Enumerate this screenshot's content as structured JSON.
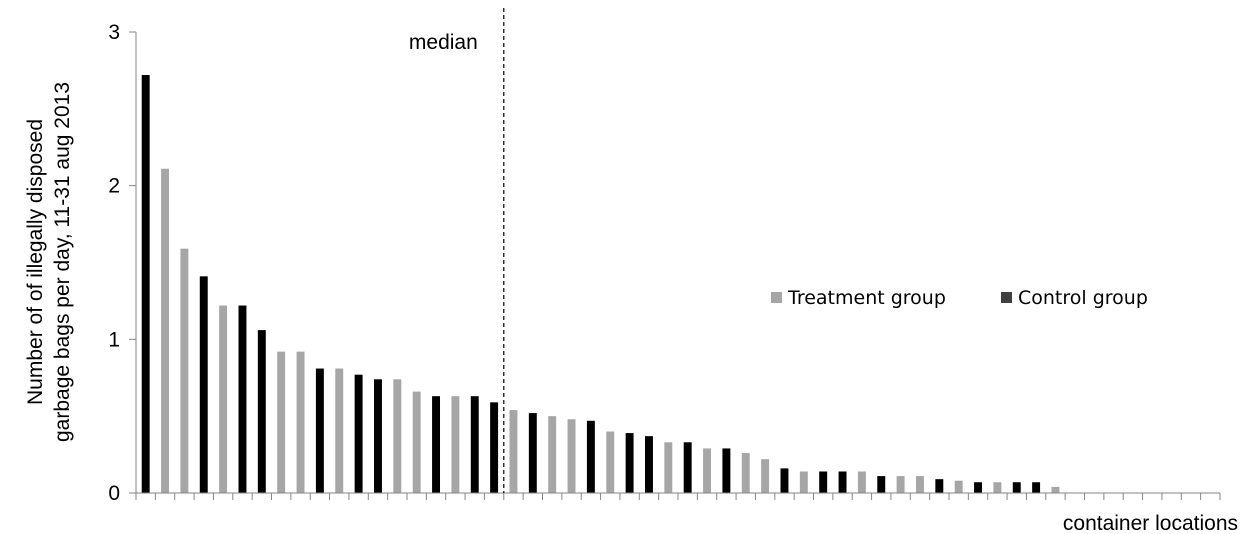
{
  "chart_data": {
    "type": "bar",
    "xlabel": "container locations",
    "ylabel_lines": [
      "Number of of illegally disposed",
      "garbage bags per day, 11-31 aug 2013"
    ],
    "ylim": [
      0,
      3
    ],
    "yticks": [
      "0",
      "1",
      "2",
      "3"
    ],
    "grid": false,
    "legend_position": "right-middle",
    "legend": [
      {
        "name": "Treatment group",
        "color": "#a6a6a6"
      },
      {
        "name": "Control group",
        "color": "#000000"
      }
    ],
    "annotation": {
      "label": "median",
      "style": "dashed vertical line",
      "position_between_bars": [
        18,
        19
      ]
    },
    "bars": [
      {
        "value": 2.72,
        "group": "Control group"
      },
      {
        "value": 2.11,
        "group": "Treatment group"
      },
      {
        "value": 1.59,
        "group": "Treatment group"
      },
      {
        "value": 1.41,
        "group": "Control group"
      },
      {
        "value": 1.22,
        "group": "Treatment group"
      },
      {
        "value": 1.22,
        "group": "Control group"
      },
      {
        "value": 1.06,
        "group": "Control group"
      },
      {
        "value": 0.92,
        "group": "Treatment group"
      },
      {
        "value": 0.92,
        "group": "Treatment group"
      },
      {
        "value": 0.81,
        "group": "Control group"
      },
      {
        "value": 0.81,
        "group": "Treatment group"
      },
      {
        "value": 0.77,
        "group": "Control group"
      },
      {
        "value": 0.74,
        "group": "Control group"
      },
      {
        "value": 0.74,
        "group": "Treatment group"
      },
      {
        "value": 0.66,
        "group": "Treatment group"
      },
      {
        "value": 0.63,
        "group": "Control group"
      },
      {
        "value": 0.63,
        "group": "Treatment group"
      },
      {
        "value": 0.63,
        "group": "Control group"
      },
      {
        "value": 0.59,
        "group": "Control group"
      },
      {
        "value": 0.54,
        "group": "Treatment group"
      },
      {
        "value": 0.52,
        "group": "Control group"
      },
      {
        "value": 0.5,
        "group": "Treatment group"
      },
      {
        "value": 0.48,
        "group": "Treatment group"
      },
      {
        "value": 0.47,
        "group": "Control group"
      },
      {
        "value": 0.4,
        "group": "Treatment group"
      },
      {
        "value": 0.39,
        "group": "Control group"
      },
      {
        "value": 0.37,
        "group": "Control group"
      },
      {
        "value": 0.33,
        "group": "Treatment group"
      },
      {
        "value": 0.33,
        "group": "Control group"
      },
      {
        "value": 0.29,
        "group": "Treatment group"
      },
      {
        "value": 0.29,
        "group": "Control group"
      },
      {
        "value": 0.26,
        "group": "Treatment group"
      },
      {
        "value": 0.22,
        "group": "Treatment group"
      },
      {
        "value": 0.16,
        "group": "Control group"
      },
      {
        "value": 0.14,
        "group": "Treatment group"
      },
      {
        "value": 0.14,
        "group": "Control group"
      },
      {
        "value": 0.14,
        "group": "Control group"
      },
      {
        "value": 0.14,
        "group": "Treatment group"
      },
      {
        "value": 0.11,
        "group": "Control group"
      },
      {
        "value": 0.11,
        "group": "Treatment group"
      },
      {
        "value": 0.11,
        "group": "Treatment group"
      },
      {
        "value": 0.09,
        "group": "Control group"
      },
      {
        "value": 0.08,
        "group": "Treatment group"
      },
      {
        "value": 0.07,
        "group": "Control group"
      },
      {
        "value": 0.07,
        "group": "Treatment group"
      },
      {
        "value": 0.07,
        "group": "Control group"
      },
      {
        "value": 0.07,
        "group": "Control group"
      },
      {
        "value": 0.04,
        "group": "Treatment group"
      },
      {
        "value": 0,
        "group": "Treatment group"
      },
      {
        "value": 0,
        "group": "Treatment group"
      },
      {
        "value": 0,
        "group": "Treatment group"
      },
      {
        "value": 0,
        "group": "Treatment group"
      },
      {
        "value": 0,
        "group": "Treatment group"
      },
      {
        "value": 0,
        "group": "Treatment group"
      },
      {
        "value": 0,
        "group": "Treatment group"
      },
      {
        "value": 0,
        "group": "Treatment group"
      }
    ]
  }
}
